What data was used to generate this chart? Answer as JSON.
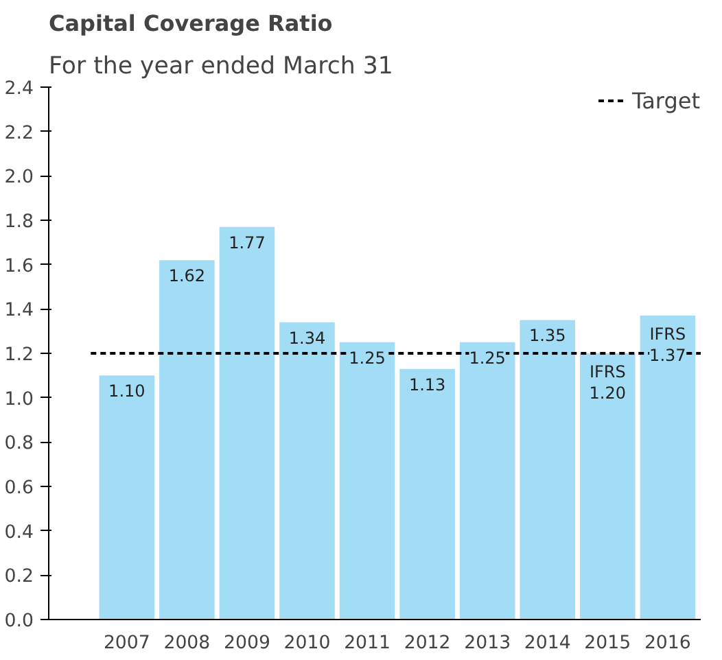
{
  "chart_data": {
    "type": "bar",
    "title": "Capital Coverage Ratio",
    "subtitle": "For the year ended March 31",
    "categories": [
      "2007",
      "2008",
      "2009",
      "2010",
      "2011",
      "2012",
      "2013",
      "2014",
      "2015",
      "2016"
    ],
    "values": [
      1.1,
      1.62,
      1.77,
      1.34,
      1.25,
      1.13,
      1.25,
      1.35,
      1.2,
      1.37
    ],
    "value_labels": [
      "1.10",
      "1.62",
      "1.77",
      "1.34",
      "1.25",
      "1.13",
      "1.25",
      "1.35",
      "IFRS\n1.20",
      "IFRS\n1.37"
    ],
    "color": "#a3dcf5",
    "ylim": [
      0,
      2.4
    ],
    "yticks": [
      {
        "value": 0,
        "label": "0.0"
      },
      {
        "value": 0.2,
        "label": "0.2"
      },
      {
        "value": 0.4,
        "label": "0.4"
      },
      {
        "value": 0.6,
        "label": "0.6"
      },
      {
        "value": 0.8,
        "label": "0.8"
      },
      {
        "value": 1.0,
        "label": "1.0"
      },
      {
        "value": 1.2,
        "label": "1.2"
      },
      {
        "value": 1.4,
        "label": "1.4"
      },
      {
        "value": 1.6,
        "label": "1.6"
      },
      {
        "value": 1.8,
        "label": "1.8"
      },
      {
        "value": 2.0,
        "label": "2.0"
      },
      {
        "value": 2.2,
        "label": "2.2"
      },
      {
        "value": 2.4,
        "label": "2.4"
      }
    ],
    "ref_lines": [
      {
        "axis": "y",
        "value": 1.2,
        "label": "Target",
        "color": "#000000",
        "line_style": "dashed"
      }
    ],
    "legend": "top right",
    "grid": false
  }
}
